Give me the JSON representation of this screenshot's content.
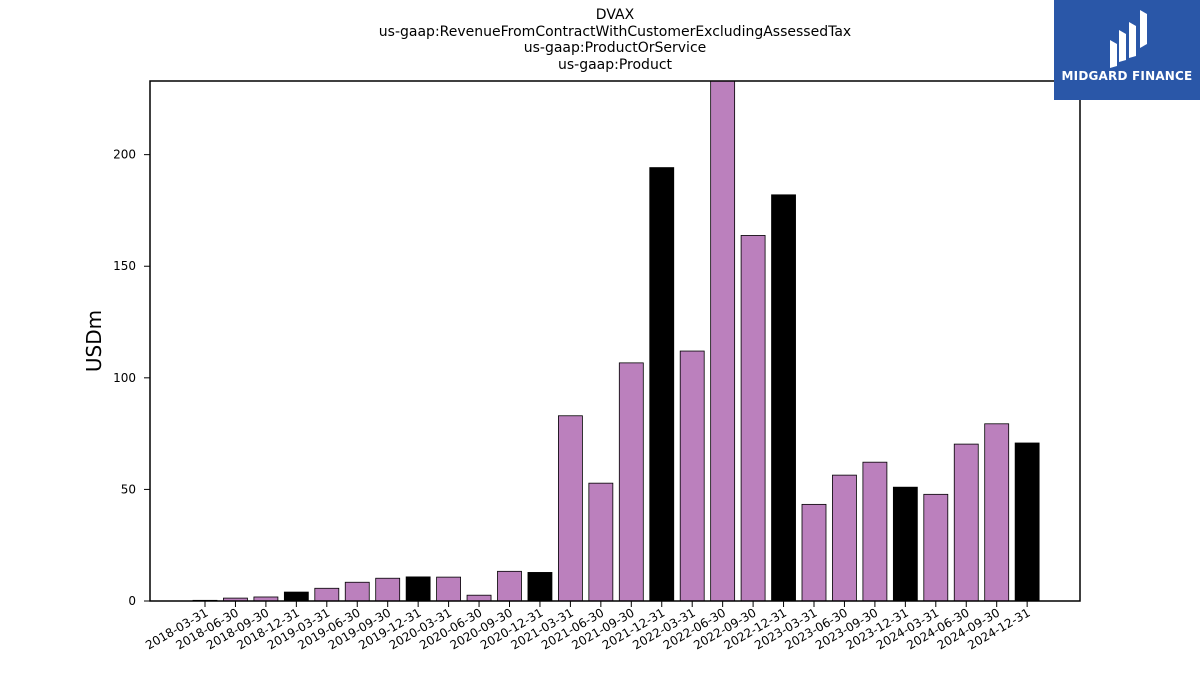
{
  "chart_data": {
    "type": "bar",
    "title": [
      "DVAX",
      "us-gaap:RevenueFromContractWithCustomerExcludingAssessedTax",
      "us-gaap:ProductOrService",
      "us-gaap:Product"
    ],
    "ylabel": "USDm",
    "xlabel": "",
    "ylim": [
      0,
      233
    ],
    "yticks": [
      0,
      50,
      100,
      150,
      200
    ],
    "categories": [
      "2018-03-31",
      "2018-06-30",
      "2018-09-30",
      "2018-12-31",
      "2019-03-31",
      "2019-06-30",
      "2019-09-30",
      "2019-12-31",
      "2020-03-31",
      "2020-06-30",
      "2020-09-30",
      "2020-12-31",
      "2021-03-31",
      "2021-06-30",
      "2021-09-30",
      "2021-12-31",
      "2022-03-31",
      "2022-06-30",
      "2022-09-30",
      "2022-12-31",
      "2023-03-31",
      "2023-06-30",
      "2023-09-30",
      "2023-12-31",
      "2024-03-31",
      "2024-06-30",
      "2024-09-30",
      "2024-12-31"
    ],
    "values": [
      0.3,
      1.3,
      1.8,
      4.0,
      5.7,
      8.4,
      10.2,
      10.8,
      10.7,
      2.6,
      13.3,
      12.8,
      83.0,
      52.8,
      106.7,
      194.2,
      112.0,
      233.0,
      163.8,
      182.0,
      43.3,
      56.4,
      62.2,
      51.0,
      47.8,
      70.3,
      79.4,
      70.8
    ],
    "year_end_color": "#000000",
    "quarter_color": "#bb80bd",
    "grid": false
  },
  "logo": {
    "text": "MIDGARD FINANCE",
    "bg_color": "#2a57a8"
  }
}
